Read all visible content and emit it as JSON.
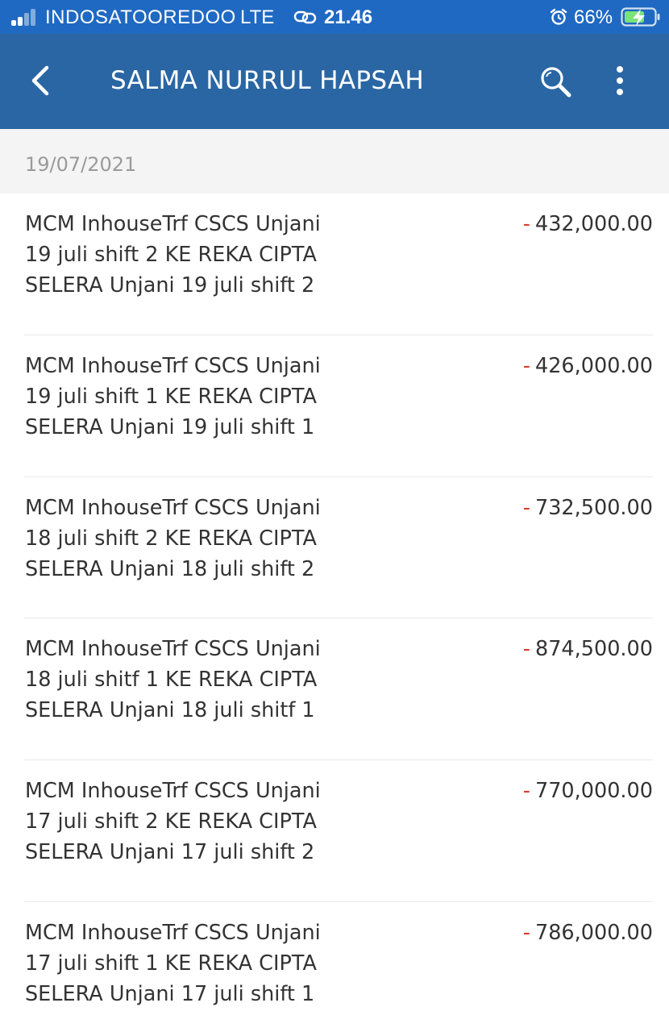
{
  "status_bar": {
    "carrier": "INDOSATOOREDOO",
    "network": "LTE",
    "time": "21.46",
    "battery": "66%"
  },
  "header": {
    "title": "SALMA NURRUL HAPSAH",
    "icons": [
      "back-icon",
      "search-icon",
      "more-icon"
    ]
  },
  "date_group": "19/07/2021",
  "transactions": [
    {
      "description": "MCM InhouseTrf CSCS Unjani\n 19 juli shift 2 KE REKA CIPTA\nSELERA Unjani 19 juli shift 2",
      "sign": "-",
      "amount": "432,000.00"
    },
    {
      "description": "MCM InhouseTrf CSCS Unjani\n 19 juli shift 1 KE REKA CIPTA\nSELERA Unjani 19 juli shift 1",
      "sign": "-",
      "amount": "426,000.00"
    },
    {
      "description": "MCM InhouseTrf CSCS Unjani\n 18 juli shift 2 KE REKA CIPTA\nSELERA Unjani 18 juli shift 2",
      "sign": "-",
      "amount": "732,500.00"
    },
    {
      "description": "MCM InhouseTrf CSCS Unjani\n 18 juli shitf 1 KE REKA CIPTA\nSELERA Unjani 18 juli shitf 1",
      "sign": "-",
      "amount": "874,500.00"
    },
    {
      "description": "MCM InhouseTrf CSCS Unjani\n 17 juli shift 2 KE REKA CIPTA\nSELERA Unjani 17 juli shift 2",
      "sign": "-",
      "amount": "770,000.00"
    },
    {
      "description": "MCM InhouseTrf CSCS Unjani\n 17 juli shift 1 KE REKA CIPTA\nSELERA Unjani 17 juli shift 1",
      "sign": "-",
      "amount": "786,000.00"
    }
  ],
  "colors": {
    "status_bar_bg": "#1f69c2",
    "app_bar_bg": "#2a66a3",
    "debit_sign": "#e0392b"
  }
}
